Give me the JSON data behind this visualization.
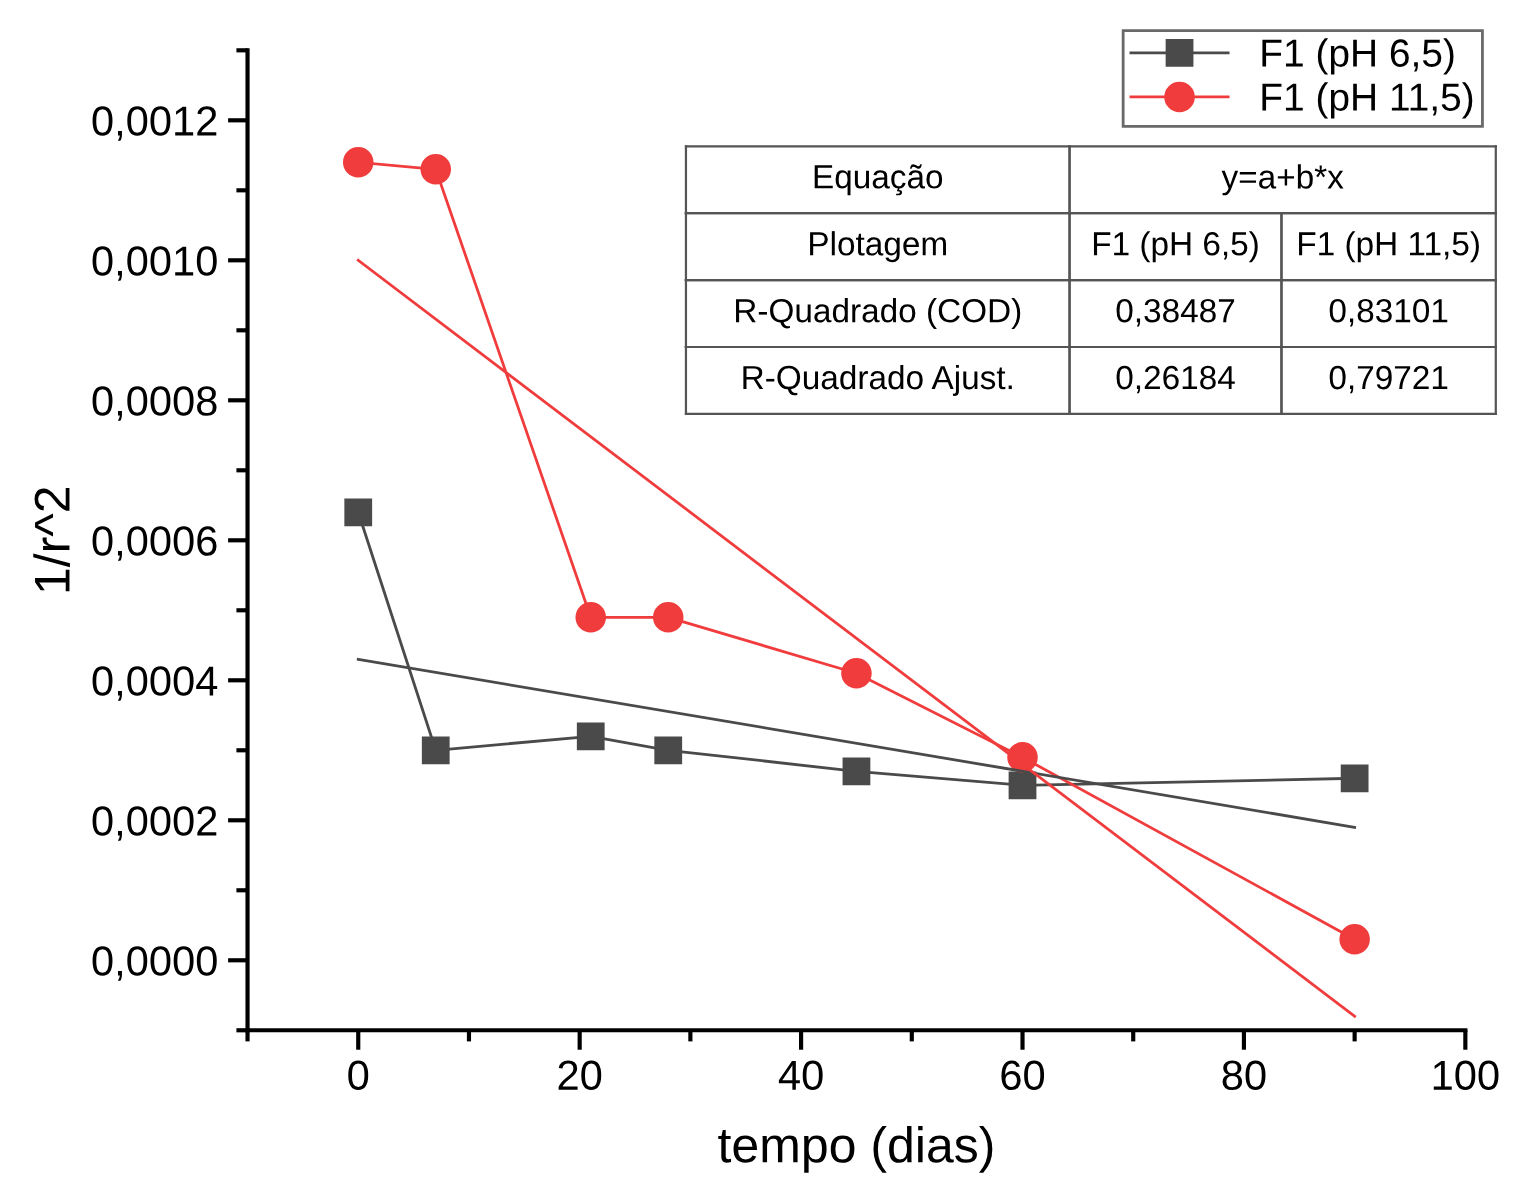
{
  "chart_data": {
    "type": "line",
    "xlabel": "tempo (dias)",
    "ylabel": "1/r^2",
    "x": [
      0,
      7,
      21,
      28,
      45,
      60,
      90
    ],
    "series": [
      {
        "name": "F1 (pH 6,5)",
        "color": "#4a4a4a",
        "marker": "square",
        "values": [
          0.00064,
          0.0003,
          0.00032,
          0.0003,
          0.00027,
          0.00025,
          0.00026
        ]
      },
      {
        "name": "F1 (pH 11,5)",
        "color": "#f03c3c",
        "marker": "circle",
        "values": [
          0.00114,
          0.00113,
          0.00049,
          0.00049,
          0.00041,
          0.00029,
          3e-05
        ]
      },
      {
        "type": "line",
        "color": "#4a4a4a",
        "marker": "none",
        "values": [
          0.00043,
          null,
          null,
          null,
          null,
          null,
          0.00019
        ]
      },
      {
        "type": "line",
        "color": "#f03c3c",
        "marker": "none",
        "values": [
          0.001,
          null,
          null,
          null,
          null,
          null,
          -8e-05
        ]
      }
    ],
    "xlim": [
      -10,
      100
    ],
    "xticks": [
      0,
      20,
      40,
      60,
      80,
      100
    ],
    "ylim": [
      -0.0001,
      0.0013
    ],
    "yticks": [
      {
        "value": 0,
        "label": "0,0000"
      },
      {
        "value": 0.0002,
        "label": "0,0002"
      },
      {
        "value": 0.0004,
        "label": "0,0004"
      },
      {
        "value": 0.0006,
        "label": "0,0006"
      },
      {
        "value": 0.0008,
        "label": "0,0008"
      },
      {
        "value": 0.001,
        "label": "0,0010"
      },
      {
        "value": 0.0012,
        "label": "0,0012"
      }
    ],
    "annotations": [
      "Equação",
      "y=a+b*x",
      "Plotagem",
      "F1 (pH 6,5)",
      "F1 (pH 11,5)",
      "R-Quadrado (COD)",
      "0,38487",
      "0,83101",
      "R-Quadrado Ajust.",
      "0,26184",
      "0,79721"
    ],
    "grid": false,
    "legend": "top right",
    "line_style": "solid"
  }
}
